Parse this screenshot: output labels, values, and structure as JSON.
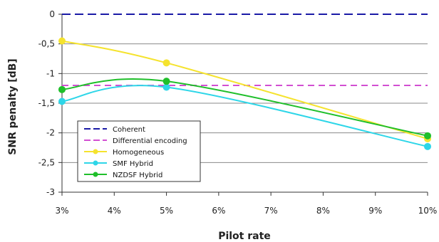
{
  "chart_data": {
    "type": "line",
    "xlabel": "Pilot rate",
    "ylabel": "SNR penalty [dB]",
    "xlim": [
      3,
      10
    ],
    "ylim": [
      -3,
      0
    ],
    "xticks": [
      3,
      4,
      5,
      6,
      7,
      8,
      9,
      10
    ],
    "xtick_labels": [
      "3%",
      "4%",
      "5%",
      "6%",
      "7%",
      "8%",
      "9%",
      "10%"
    ],
    "yticks": [
      0,
      -0.5,
      -1,
      -1.5,
      -2,
      -2.5,
      -3
    ],
    "ytick_labels": [
      "0",
      "-0,5",
      "-1",
      "-1,5",
      "-2",
      "-2,5",
      "-3"
    ],
    "grid": "horizontal",
    "legend_position": "bottom-left",
    "series": [
      {
        "name": "Coherent",
        "color": "#1a1aa6",
        "style": "dashed",
        "marker": false,
        "x": [
          3,
          10
        ],
        "y": [
          0,
          0
        ]
      },
      {
        "name": "Differential encoding",
        "color": "#d24fd2",
        "style": "dashed",
        "marker": false,
        "x": [
          3,
          10
        ],
        "y": [
          -1.2,
          -1.2
        ]
      },
      {
        "name": "Homogeneous",
        "color": "#f5e32e",
        "style": "solid",
        "marker": true,
        "x": [
          3,
          5,
          10
        ],
        "y": [
          -0.45,
          -0.82,
          -2.1
        ]
      },
      {
        "name": "SMF Hybrid",
        "color": "#2ed6e8",
        "style": "solid",
        "marker": true,
        "x": [
          3,
          5,
          10
        ],
        "y": [
          -1.47,
          -1.23,
          -2.23
        ]
      },
      {
        "name": "NZDSF Hybrid",
        "color": "#1fbf2a",
        "style": "solid",
        "marker": true,
        "x": [
          3,
          5,
          10
        ],
        "y": [
          -1.27,
          -1.13,
          -2.05
        ]
      }
    ]
  }
}
